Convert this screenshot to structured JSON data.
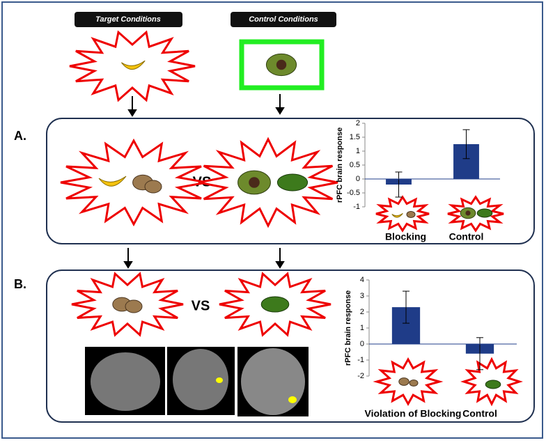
{
  "labels": {
    "target": "Target Conditions",
    "control": "Control Conditions",
    "panel_a": "A.",
    "panel_b": "B.",
    "vs_a": "VS",
    "vs_b": "VS"
  },
  "chart_data": [
    {
      "type": "bar",
      "ylabel": "rPFC brain response",
      "categories": [
        "Blocking",
        "Control"
      ],
      "values": [
        -0.2,
        1.25
      ],
      "errors": [
        0.45,
        0.52
      ],
      "color": "#1f3c88",
      "ylim": [
        -1,
        2
      ],
      "yticks": [
        -1,
        -0.5,
        0,
        0.5,
        1,
        1.5,
        2
      ]
    },
    {
      "type": "bar",
      "ylabel": "rPFC brain response",
      "categories": [
        "Violation of Blocking",
        "Control"
      ],
      "values": [
        2.3,
        -0.6
      ],
      "errors": [
        1.0,
        1.0
      ],
      "color": "#1f3c88",
      "ylim": [
        -2,
        4
      ],
      "yticks": [
        -2,
        -1,
        0,
        1,
        2,
        3,
        4
      ]
    }
  ]
}
